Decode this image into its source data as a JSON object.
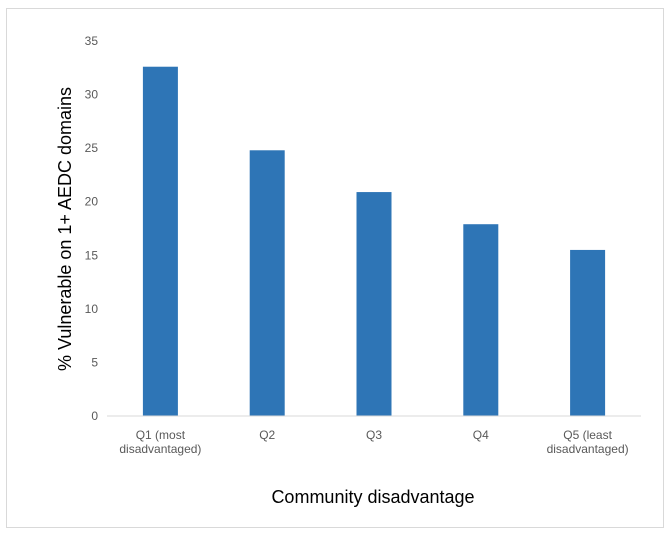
{
  "chart_data": {
    "type": "bar",
    "title": "",
    "xlabel": "Community disadvantage",
    "ylabel": "% Vulnerable on 1+ AEDC domains",
    "categories": [
      [
        "Q1 (most",
        "disadvantaged)"
      ],
      [
        "Q2"
      ],
      [
        "Q3"
      ],
      [
        "Q4"
      ],
      [
        "Q5 (least",
        "disadvantaged)"
      ]
    ],
    "values": [
      32.6,
      24.8,
      20.9,
      17.9,
      15.5
    ],
    "ylim": [
      0,
      35
    ],
    "yticks": [
      0,
      5,
      10,
      15,
      20,
      25,
      30,
      35
    ],
    "grid": false,
    "legend": "none",
    "bar_color": "#2E75B6",
    "axis_color": "#d9d9d9"
  }
}
